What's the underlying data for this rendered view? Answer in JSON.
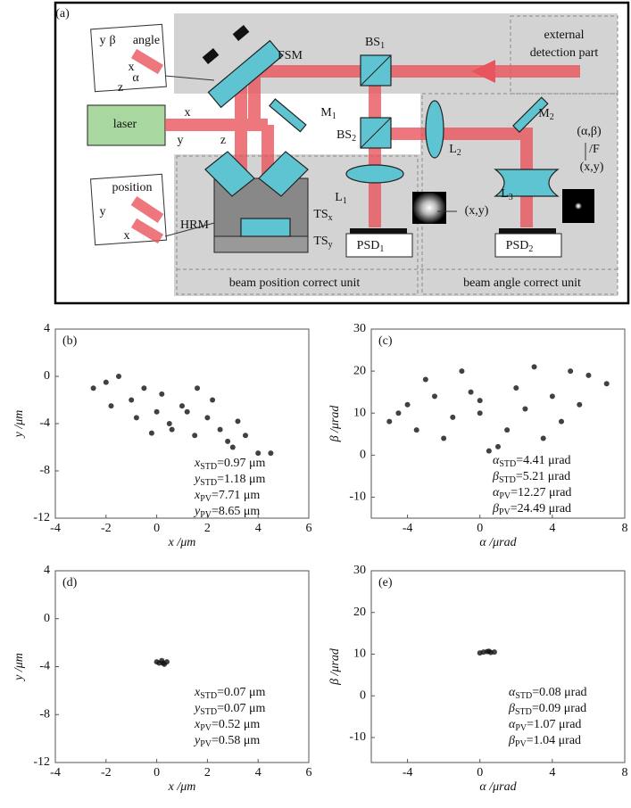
{
  "diagram": {
    "labels": [
      {
        "text": "(a)"
      },
      {
        "text": "y"
      },
      {
        "text": "β"
      },
      {
        "text": "angle"
      },
      {
        "text": "x"
      },
      {
        "text": "α"
      },
      {
        "text": "z"
      },
      {
        "text": "external"
      },
      {
        "text": "detection part"
      },
      {
        "text": "FSM"
      },
      {
        "text": "BS",
        "sub": "1"
      },
      {
        "text": "laser"
      },
      {
        "text": "x"
      },
      {
        "text": "y"
      },
      {
        "text": "z"
      },
      {
        "text": "M",
        "sub": "1"
      },
      {
        "text": "BS",
        "sub": "2"
      },
      {
        "text": "L",
        "sub": "2"
      },
      {
        "text": "M",
        "sub": "2"
      },
      {
        "text": "(α,β)"
      },
      {
        "text": "/F"
      },
      {
        "text": "(x,y)"
      },
      {
        "text": "L",
        "sub": "1"
      },
      {
        "text": "L",
        "sub": "3"
      },
      {
        "text": "(x,y)"
      },
      {
        "text": "position"
      },
      {
        "text": "y"
      },
      {
        "text": "x"
      },
      {
        "text": "HRM"
      },
      {
        "text": "TS",
        "sub": "x"
      },
      {
        "text": "TS",
        "sub": "y"
      },
      {
        "text": "PSD",
        "sub": "1"
      },
      {
        "text": "PSD",
        "sub": "2"
      },
      {
        "text": "beam position correct unit"
      },
      {
        "text": "beam angle correct unit"
      }
    ]
  },
  "chart_data": [
    {
      "type": "scatter",
      "panel": "(b)",
      "xlabel": "x /μm",
      "ylabel": "y /μm",
      "xlim": [
        -4,
        6
      ],
      "ylim": [
        -12,
        4
      ],
      "xticks": [
        -4,
        -2,
        0,
        2,
        4,
        6
      ],
      "yticks": [
        -12,
        -8,
        -4,
        0,
        4
      ],
      "color": "#111111",
      "x": [
        -2.5,
        -2,
        -1.5,
        -1,
        -0.5,
        0,
        0.5,
        1,
        1.5,
        2,
        2.5,
        3,
        3.5,
        4,
        4.5,
        -1.8,
        -0.8,
        0.2,
        1.2,
        2.2,
        3.2,
        0.6,
        1.6,
        -0.2,
        2.8
      ],
      "y": [
        -1,
        -0.5,
        0,
        -2,
        -1,
        -3,
        -4,
        -2.5,
        -5,
        -3.5,
        -4.5,
        -6,
        -5,
        -6.5,
        -6.5,
        -2.5,
        -3.5,
        -1.5,
        -3,
        -2,
        -3.8,
        -4.5,
        -1,
        -4.8,
        -5.5
      ],
      "stats": [
        {
          "var": "x",
          "sub": "STD",
          "rest": "=0.97 μm"
        },
        {
          "var": "y",
          "sub": "STD",
          "rest": "=1.18 μm"
        },
        {
          "var": "x",
          "sub": "PV",
          "rest": "=7.71 μm"
        },
        {
          "var": "y",
          "sub": "PV",
          "rest": "=8.65 μm"
        }
      ]
    },
    {
      "type": "scatter",
      "panel": "(c)",
      "xlabel": "α /μrad",
      "ylabel": "β /μrad",
      "xlim": [
        -6,
        8
      ],
      "ylim": [
        -15,
        30
      ],
      "xticks": [
        -4,
        0,
        4,
        8
      ],
      "yticks": [
        -10,
        0,
        10,
        20,
        30
      ],
      "color": "#111111",
      "x": [
        -5,
        -4,
        -3,
        -2,
        -1,
        0,
        1,
        2,
        3,
        4,
        5,
        6,
        7,
        -3.5,
        -1.5,
        0.5,
        2.5,
        4.5,
        -2.5,
        1.5,
        3.5,
        -0.5,
        5.5,
        -4.5,
        0
      ],
      "y": [
        8,
        12,
        18,
        4,
        20,
        10,
        2,
        16,
        21,
        14,
        20,
        19,
        17,
        6,
        9,
        1,
        11,
        8,
        14,
        6,
        4,
        15,
        12,
        10,
        13
      ],
      "stats": [
        {
          "var": "α",
          "sub": "STD",
          "rest": "=4.41 μrad"
        },
        {
          "var": "β",
          "sub": "STD",
          "rest": "=5.21 μrad"
        },
        {
          "var": "α",
          "sub": "PV",
          "rest": "=12.27 μrad"
        },
        {
          "var": "β",
          "sub": "PV",
          "rest": "=24.49 μrad"
        }
      ]
    },
    {
      "type": "scatter",
      "panel": "(d)",
      "xlabel": "x /μm",
      "ylabel": "y /μm",
      "xlim": [
        -4,
        6
      ],
      "ylim": [
        -12,
        4
      ],
      "xticks": [
        -4,
        -2,
        0,
        2,
        4,
        6
      ],
      "yticks": [
        -12,
        -8,
        -4,
        0,
        4
      ],
      "color": "#111111",
      "x": [
        0,
        0.1,
        0.2,
        0.3,
        0.4,
        0.25
      ],
      "y": [
        -3.6,
        -3.7,
        -3.5,
        -3.8,
        -3.6,
        -3.7
      ],
      "stats": [
        {
          "var": "x",
          "sub": "STD",
          "rest": "=0.07 μm"
        },
        {
          "var": "y",
          "sub": "STD",
          "rest": "=0.07 μm"
        },
        {
          "var": "x",
          "sub": "PV",
          "rest": "=0.52 μm"
        },
        {
          "var": "y",
          "sub": "PV",
          "rest": "=0.58 μm"
        }
      ]
    },
    {
      "type": "scatter",
      "panel": "(e)",
      "xlabel": "α /μrad",
      "ylabel": "β /μrad",
      "xlim": [
        -6,
        8
      ],
      "ylim": [
        -16,
        30
      ],
      "xticks": [
        -4,
        0,
        4,
        8
      ],
      "yticks": [
        -10,
        0,
        10,
        20,
        30
      ],
      "color": "#111111",
      "x": [
        0,
        0.2,
        0.4,
        0.6,
        0.8,
        0.5
      ],
      "y": [
        10.3,
        10.5,
        10.6,
        10.4,
        10.5,
        10.7
      ],
      "stats": [
        {
          "var": "α",
          "sub": "STD",
          "rest": "=0.08 μrad"
        },
        {
          "var": "β",
          "sub": "STD",
          "rest": "=0.09 μrad"
        },
        {
          "var": "α",
          "sub": "PV",
          "rest": "=1.07 μrad"
        },
        {
          "var": "β",
          "sub": "PV",
          "rest": "=1.04 μrad"
        }
      ]
    }
  ]
}
